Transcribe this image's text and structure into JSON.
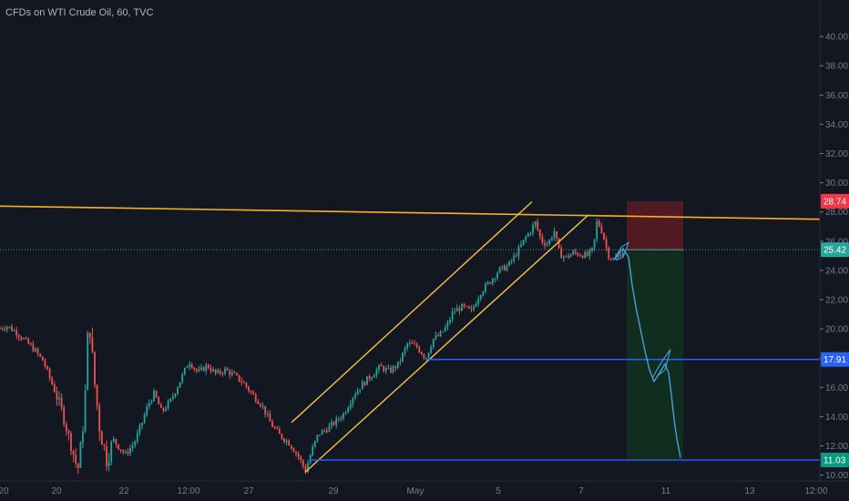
{
  "header": {
    "title": "CFDs on WTI Crude Oil, 60, TVC"
  },
  "colors": {
    "background": "#131722",
    "up": "#26a69a",
    "down": "#ef5350",
    "channel": "#f6c244",
    "resistance": "#f6b026",
    "level": "#2962ff",
    "level_label": "#2962ff",
    "stop_zone": "#5d1a22",
    "target_zone": "#11301f",
    "price_line": "#26a69a",
    "path": "#4a9fd9",
    "axis_text": "#787b86",
    "grid": "#2a2e39"
  },
  "chart_data": {
    "type": "candlestick",
    "title": "CFDs on WTI Crude Oil, 60, TVC",
    "ylim": [
      9.6,
      42.5
    ],
    "y_ticks": [
      "10.00",
      "12.00",
      "14.00",
      "16.00",
      "18.00",
      "20.00",
      "22.00",
      "24.00",
      "26.00",
      "28.00",
      "30.00",
      "32.00",
      "34.00",
      "36.00",
      "38.00",
      "40.00"
    ],
    "x_ticks": [
      {
        "label": "20",
        "t": 4
      },
      {
        "label": "20",
        "t": 62
      },
      {
        "label": "22",
        "t": 136
      },
      {
        "label": "12:00",
        "t": 207
      },
      {
        "label": "27",
        "t": 273
      },
      {
        "label": "29",
        "t": 366
      },
      {
        "label": "May",
        "t": 456
      },
      {
        "label": "5",
        "t": 547
      },
      {
        "label": "7",
        "t": 638
      },
      {
        "label": "11",
        "t": 731
      },
      {
        "label": "13",
        "t": 823
      },
      {
        "label": "12:00",
        "t": 896
      }
    ],
    "x_range": [
      0,
      900
    ],
    "price_anchors": [
      [
        0,
        20.0
      ],
      [
        10,
        20.2
      ],
      [
        20,
        19.8
      ],
      [
        30,
        19.2
      ],
      [
        40,
        18.6
      ],
      [
        50,
        17.8
      ],
      [
        60,
        16.2
      ],
      [
        70,
        14.5
      ],
      [
        80,
        12.2
      ],
      [
        88,
        10.3
      ],
      [
        95,
        14.0
      ],
      [
        100,
        21.0
      ],
      [
        106,
        16.5
      ],
      [
        112,
        13.2
      ],
      [
        120,
        11.0
      ],
      [
        126,
        12.5
      ],
      [
        132,
        12.0
      ],
      [
        140,
        11.4
      ],
      [
        150,
        12.2
      ],
      [
        158,
        13.5
      ],
      [
        165,
        14.8
      ],
      [
        172,
        15.6
      ],
      [
        180,
        14.3
      ],
      [
        190,
        15.1
      ],
      [
        200,
        16.4
      ],
      [
        210,
        17.8
      ],
      [
        220,
        17.0
      ],
      [
        230,
        17.5
      ],
      [
        240,
        16.9
      ],
      [
        250,
        17.2
      ],
      [
        260,
        16.8
      ],
      [
        270,
        16.3
      ],
      [
        280,
        15.5
      ],
      [
        290,
        14.8
      ],
      [
        300,
        13.5
      ],
      [
        310,
        12.7
      ],
      [
        320,
        12.2
      ],
      [
        330,
        11.3
      ],
      [
        338,
        10.3
      ],
      [
        345,
        11.7
      ],
      [
        352,
        12.8
      ],
      [
        360,
        13.1
      ],
      [
        370,
        13.6
      ],
      [
        380,
        14.2
      ],
      [
        390,
        15.4
      ],
      [
        400,
        16.2
      ],
      [
        410,
        16.8
      ],
      [
        420,
        17.4
      ],
      [
        430,
        17.1
      ],
      [
        440,
        17.6
      ],
      [
        450,
        19.0
      ],
      [
        460,
        18.8
      ],
      [
        470,
        18.0
      ],
      [
        478,
        19.3
      ],
      [
        486,
        19.6
      ],
      [
        494,
        20.3
      ],
      [
        500,
        21.2
      ],
      [
        510,
        21.5
      ],
      [
        520,
        21.2
      ],
      [
        530,
        22.5
      ],
      [
        540,
        23.2
      ],
      [
        550,
        24.0
      ],
      [
        560,
        24.3
      ],
      [
        570,
        25.2
      ],
      [
        580,
        26.3
      ],
      [
        586,
        26.8
      ],
      [
        590,
        27.3
      ],
      [
        597,
        26.0
      ],
      [
        604,
        25.8
      ],
      [
        611,
        26.7
      ],
      [
        617,
        25.1
      ],
      [
        624,
        24.9
      ],
      [
        632,
        25.2
      ],
      [
        640,
        25.1
      ],
      [
        648,
        25.0
      ],
      [
        654,
        25.5
      ],
      [
        658,
        27.4
      ],
      [
        664,
        26.6
      ],
      [
        670,
        25.1
      ],
      [
        676,
        24.7
      ],
      [
        681,
        25.0
      ],
      [
        686,
        25.3
      ]
    ],
    "volatility_zones": [
      {
        "from": 95,
        "to": 120,
        "amp": 1.6
      },
      {
        "from": 60,
        "to": 95,
        "amp": 1.0
      }
    ],
    "channel": {
      "upper": {
        "from": [
          320,
          13.6
        ],
        "to": [
          584,
          28.7
        ]
      },
      "lower": {
        "from": [
          335,
          10.2
        ],
        "to": [
          646,
          27.8
        ]
      }
    },
    "resistance_line": {
      "from": [
        0,
        28.4
      ],
      "to": [
        900,
        27.5
      ]
    },
    "horizontal_levels": [
      {
        "name": "mid-level",
        "from_t": 468,
        "price": 17.91
      },
      {
        "name": "bottom-level",
        "from_t": 340,
        "price": 11.03
      }
    ],
    "position": {
      "from_t": 688,
      "to_t": 750,
      "stop": 28.74,
      "entry": 25.42,
      "target": 11.03
    },
    "current_price": 25.42,
    "projection_path": [
      [
        676,
        24.9
      ],
      [
        684,
        25.5
      ],
      [
        690,
        24.9
      ],
      [
        694,
        23.0
      ],
      [
        698,
        21.5
      ],
      [
        703,
        20.0
      ],
      [
        708,
        18.5
      ],
      [
        713,
        17.2
      ],
      [
        718,
        16.4
      ],
      [
        724,
        17.0
      ],
      [
        730,
        17.6
      ],
      [
        734,
        17.0
      ],
      [
        737,
        15.5
      ],
      [
        740,
        13.8
      ],
      [
        743,
        12.5
      ],
      [
        747,
        11.2
      ]
    ],
    "price_labels": [
      {
        "name": "stop-price",
        "value": "28.74",
        "price": 28.74,
        "color": "#f23645",
        "text_color": "#ffffff"
      },
      {
        "name": "entry-price",
        "value": "25.42",
        "price": 25.42,
        "color": "#26a69a",
        "text_color": "#ffffff"
      },
      {
        "name": "mid-level-price",
        "value": "17.91",
        "price": 17.91,
        "color": "#2962ff",
        "text_color": "#ffffff"
      },
      {
        "name": "target-price",
        "value": "11.03",
        "price": 11.03,
        "color": "#089981",
        "text_color": "#ffffff"
      }
    ]
  }
}
